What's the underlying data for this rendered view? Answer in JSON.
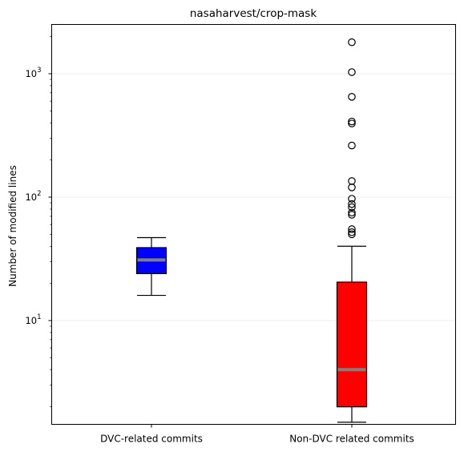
{
  "chart_data": {
    "type": "boxplot",
    "title": "nasaharvest/crop-mask",
    "xlabel": "",
    "ylabel": "Number of modified lines",
    "yscale": "log",
    "ylim": [
      1.5,
      2500
    ],
    "grid": "y-major",
    "y_ticks": [
      {
        "value": 10,
        "base": "10",
        "exp": "1"
      },
      {
        "value": 100,
        "base": "10",
        "exp": "2"
      },
      {
        "value": 1000,
        "base": "10",
        "exp": "3"
      }
    ],
    "categories": [
      "DVC-related commits",
      "Non-DVC related commits"
    ],
    "series": [
      {
        "color": "#0000ff",
        "median_color": "#808080",
        "whisker_low": 16,
        "q1": 24,
        "median": 31,
        "q3": 39,
        "whisker_high": 47,
        "outliers": []
      },
      {
        "color": "#ff0000",
        "median_color": "#808080",
        "whisker_low": 1.5,
        "q1": 2,
        "median": 4,
        "q3": 20.5,
        "whisker_high": 40,
        "outliers": [
          1800,
          1030,
          650,
          410,
          395,
          262,
          135,
          120,
          97,
          88,
          83,
          75,
          72,
          55,
          52,
          50
        ]
      }
    ]
  }
}
